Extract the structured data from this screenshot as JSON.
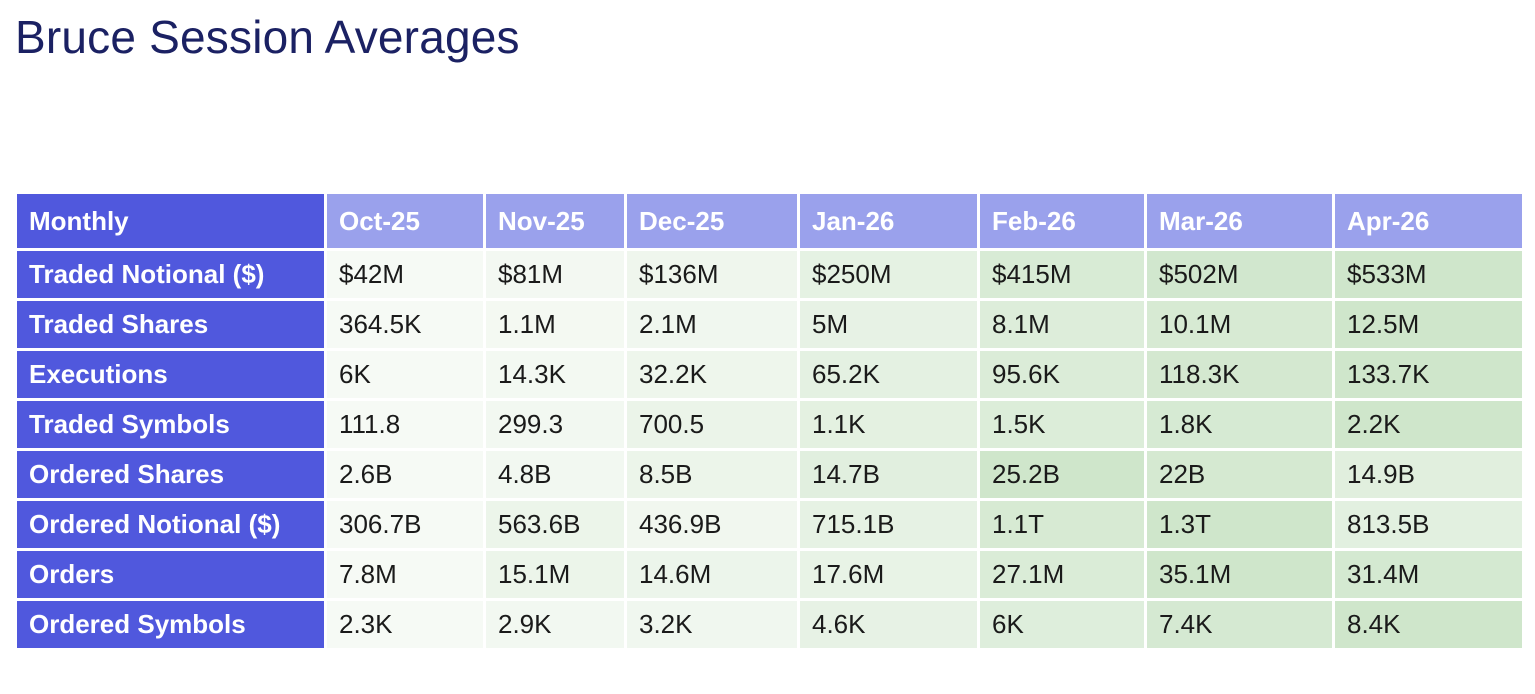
{
  "title": "Bruce Session Averages",
  "table": {
    "corner_label": "Monthly",
    "columns": [
      "Oct-25",
      "Nov-25",
      "Dec-25",
      "Jan-26",
      "Feb-26",
      "Mar-26",
      "Apr-26"
    ],
    "rows": [
      {
        "label": "Traded Notional ($)",
        "values": [
          "$42M",
          "$81M",
          "$136M",
          "$250M",
          "$415M",
          "$502M",
          "$533M"
        ]
      },
      {
        "label": "Traded Shares",
        "values": [
          "364.5K",
          "1.1M",
          "2.1M",
          "5M",
          "8.1M",
          "10.1M",
          "12.5M"
        ]
      },
      {
        "label": "Executions",
        "values": [
          "6K",
          "14.3K",
          "32.2K",
          "65.2K",
          "95.6K",
          "118.3K",
          "133.7K"
        ]
      },
      {
        "label": "Traded Symbols",
        "values": [
          "111.8",
          "299.3",
          "700.5",
          "1.1K",
          "1.5K",
          "1.8K",
          "2.2K"
        ]
      },
      {
        "label": "Ordered Shares",
        "values": [
          "2.6B",
          "4.8B",
          "8.5B",
          "14.7B",
          "25.2B",
          "22B",
          "14.9B"
        ]
      },
      {
        "label": "Ordered Notional ($)",
        "values": [
          "306.7B",
          "563.6B",
          "436.9B",
          "715.1B",
          "1.1T",
          "1.3T",
          "813.5B"
        ]
      },
      {
        "label": "Orders",
        "values": [
          "7.8M",
          "15.1M",
          "14.6M",
          "17.6M",
          "27.1M",
          "35.1M",
          "31.4M"
        ]
      },
      {
        "label": "Ordered Symbols",
        "values": [
          "2.3K",
          "2.9K",
          "3.2K",
          "4.6K",
          "6K",
          "7.4K",
          "8.4K"
        ]
      }
    ],
    "heatmap_colors": {
      "low": "#f6faf5",
      "high": "#cfe6cb"
    }
  }
}
